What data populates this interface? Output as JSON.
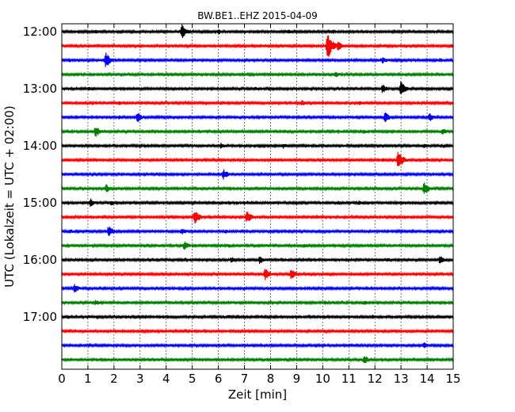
{
  "chart_data": {
    "type": "line",
    "title": "BW.BE1..EHZ 2015-04-09",
    "xlabel": "Zeit  [min]",
    "ylabel": "UTC (Lokalzeit = UTC + 02:00)",
    "xlim": [
      0,
      15
    ],
    "x_ticks": [
      "0",
      "1",
      "2",
      "3",
      "4",
      "5",
      "6",
      "7",
      "8",
      "9",
      "10",
      "11",
      "12",
      "13",
      "14",
      "15"
    ],
    "y_tick_labels": [
      "12:00",
      "13:00",
      "14:00",
      "15:00",
      "16:00",
      "17:00"
    ],
    "grid": "vertical dotted",
    "trace_colors": [
      "#000000",
      "#ff0000",
      "#0000ff",
      "#008000"
    ],
    "traces": [
      {
        "start": "12:00",
        "events": [
          [
            1.3,
            3
          ],
          [
            4.6,
            10
          ],
          [
            6,
            4
          ],
          [
            8.7,
            3
          ],
          [
            10.4,
            3
          ],
          [
            11.7,
            2
          ]
        ]
      },
      {
        "start": "12:15",
        "events": [
          [
            10.2,
            18
          ],
          [
            10.6,
            7
          ],
          [
            14.9,
            3
          ]
        ]
      },
      {
        "start": "12:30",
        "events": [
          [
            0.3,
            3
          ],
          [
            1.7,
            10
          ],
          [
            12.3,
            5
          ],
          [
            14.5,
            3
          ]
        ]
      },
      {
        "start": "12:45",
        "events": [
          [
            10.5,
            4
          ],
          [
            7.6,
            2
          ]
        ]
      },
      {
        "start": "13:00",
        "events": [
          [
            1.0,
            3
          ],
          [
            7.4,
            3
          ],
          [
            12.3,
            6
          ],
          [
            13.0,
            10
          ]
        ]
      },
      {
        "start": "13:15",
        "events": [
          [
            2.2,
            3
          ],
          [
            9.2,
            4
          ],
          [
            11.4,
            3
          ],
          [
            14.9,
            3
          ]
        ]
      },
      {
        "start": "13:30",
        "events": [
          [
            2.9,
            7
          ],
          [
            2.2,
            3
          ],
          [
            12.4,
            7
          ],
          [
            14.1,
            6
          ]
        ]
      },
      {
        "start": "13:45",
        "events": [
          [
            1.3,
            8
          ],
          [
            10.6,
            3
          ],
          [
            11.6,
            3
          ],
          [
            14.6,
            5
          ]
        ]
      },
      {
        "start": "14:00",
        "events": [
          [
            6.1,
            4
          ],
          [
            8.5,
            4
          ],
          [
            13.9,
            3
          ],
          [
            9.8,
            2
          ]
        ]
      },
      {
        "start": "14:15",
        "events": [
          [
            12.9,
            13
          ],
          [
            12.3,
            3
          ]
        ]
      },
      {
        "start": "14:30",
        "events": [
          [
            6.2,
            7
          ],
          [
            0.3,
            2
          ]
        ]
      },
      {
        "start": "14:45",
        "events": [
          [
            1.7,
            6
          ],
          [
            13.9,
            9
          ],
          [
            5.3,
            2
          ]
        ]
      },
      {
        "start": "15:00",
        "events": [
          [
            1.1,
            6
          ],
          [
            1.9,
            4
          ],
          [
            6.7,
            3
          ],
          [
            8.1,
            3
          ],
          [
            10.6,
            3
          ],
          [
            11.4,
            3
          ]
        ]
      },
      {
        "start": "15:15",
        "events": [
          [
            5.1,
            10
          ],
          [
            7.1,
            8
          ],
          [
            9.8,
            3
          ]
        ]
      },
      {
        "start": "15:30",
        "events": [
          [
            0.3,
            4
          ],
          [
            1.8,
            8
          ],
          [
            4.6,
            5
          ],
          [
            6.3,
            3
          ]
        ]
      },
      {
        "start": "15:45",
        "events": [
          [
            4.7,
            6
          ],
          [
            6.4,
            3
          ],
          [
            9.3,
            3
          ]
        ]
      },
      {
        "start": "16:00",
        "events": [
          [
            7.6,
            6
          ],
          [
            6.5,
            4
          ],
          [
            12.5,
            3
          ],
          [
            14.5,
            6
          ]
        ]
      },
      {
        "start": "16:15",
        "events": [
          [
            7.8,
            8
          ],
          [
            8.8,
            7
          ]
        ]
      },
      {
        "start": "16:30",
        "events": [
          [
            0.5,
            6
          ]
        ]
      },
      {
        "start": "16:45",
        "events": [
          [
            1.3,
            4
          ],
          [
            10.1,
            3
          ],
          [
            11.6,
            4
          ],
          [
            4.2,
            2
          ]
        ]
      },
      {
        "start": "17:00",
        "events": [
          [
            1.0,
            3
          ],
          [
            6.4,
            3
          ],
          [
            11.9,
            3
          ],
          [
            12.4,
            2
          ]
        ]
      },
      {
        "start": "17:15",
        "events": []
      },
      {
        "start": "17:30",
        "events": [
          [
            13.9,
            4
          ]
        ]
      },
      {
        "start": "17:45",
        "events": [
          [
            11.6,
            6
          ],
          [
            14.3,
            2
          ]
        ]
      }
    ]
  }
}
